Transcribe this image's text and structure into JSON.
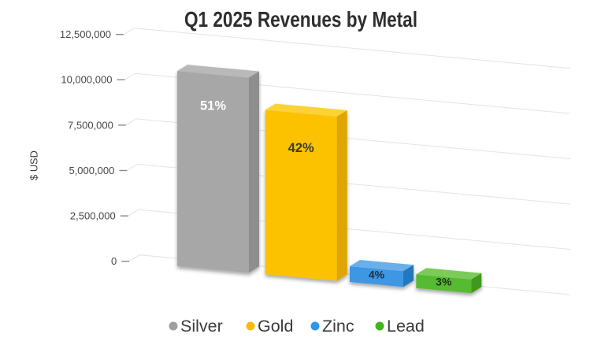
{
  "title": "Q1 2025 Revenues by Metal",
  "chart_data": {
    "type": "bar",
    "projection": "3d",
    "title": "Q1 2025 Revenues by Metal",
    "xlabel": "",
    "ylabel": "$ USD",
    "categories": [
      "Silver",
      "Gold",
      "Zinc",
      "Lead"
    ],
    "values": [
      10750000,
      9050000,
      870000,
      760000
    ],
    "bar_labels": [
      "51%",
      "42%",
      "4%",
      "3%"
    ],
    "ylim": [
      0,
      12500000
    ],
    "yticks": [
      0,
      2500000,
      5000000,
      7500000,
      10000000,
      12500000
    ],
    "ytick_labels": [
      "0",
      "2,500,000",
      "5,000,000",
      "7,500,000",
      "10,000,000",
      "12,500,000"
    ],
    "grid": true,
    "legend_position": "bottom",
    "series_styles": [
      {
        "name": "Silver",
        "front": "#a7a7a7",
        "top": "#b9b9b9",
        "side": "#8e8e8e",
        "label_color": "#ffffff",
        "legend_dot": "#9e9e9e"
      },
      {
        "name": "Gold",
        "front": "#fcc203",
        "top": "#fdd235",
        "side": "#dfa500",
        "label_color": "#3b3b3b",
        "legend_dot": "#fbbc09"
      },
      {
        "name": "Zinc",
        "front": "#3e97e2",
        "top": "#69b0ea",
        "side": "#2377be",
        "label_color": "#1d2f3e",
        "legend_dot": "#2d95ea"
      },
      {
        "name": "Lead",
        "front": "#57bb33",
        "top": "#7ccb59",
        "side": "#41991f",
        "label_color": "#1e3311",
        "legend_dot": "#45b31e"
      }
    ],
    "colors": {
      "title": "#2e2e2e",
      "tick_label": "#474747",
      "axis_label": "#3d3d3d",
      "gridline": "#e3e3e3",
      "tick_mark": "#8a8a8a",
      "legend_text": "#3b3b3b"
    }
  }
}
